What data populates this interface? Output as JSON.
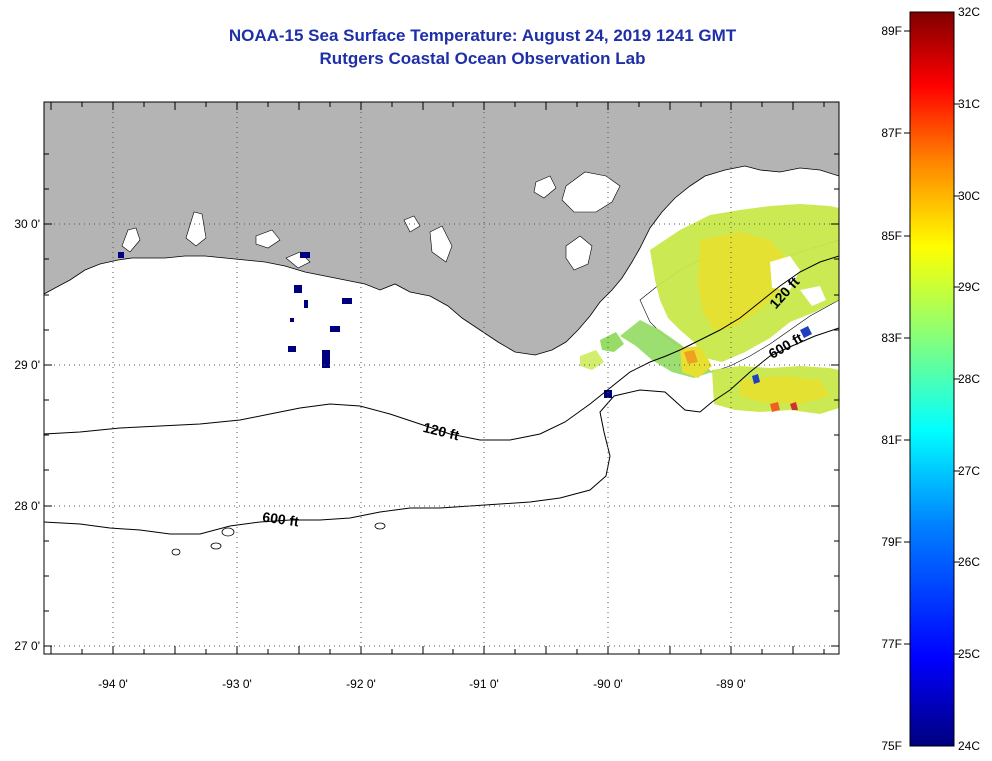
{
  "header": {
    "title": "NOAA-15 Sea Surface Temperature:  August 24, 2019 1241 GMT",
    "subtitle": "Rutgers Coastal Ocean Observation Lab"
  },
  "map": {
    "lon_ticks": [
      "-94 0'",
      "-93 0'",
      "-92 0'",
      "-91 0'",
      "-90 0'",
      "-89 0'"
    ],
    "lat_ticks": [
      "30 0'",
      "29 0'",
      "28 0'",
      "27 0'"
    ],
    "contours": [
      {
        "label": "120 ft"
      },
      {
        "label": "600 ft"
      },
      {
        "label": "120 ft"
      },
      {
        "label": "600 ft"
      }
    ],
    "colors": {
      "land": "#b4b4b4",
      "water": "#ffffff",
      "grid": "#000000",
      "cloud_mask": "#ffffff"
    }
  },
  "colorbar": {
    "fahrenheit_labels": [
      "89F",
      "87F",
      "85F",
      "83F",
      "81F",
      "79F",
      "77F",
      "75F"
    ],
    "celsius_labels": [
      "32C",
      "31C",
      "30C",
      "29C",
      "28C",
      "27C",
      "26C",
      "25C",
      "24C"
    ],
    "colors": [
      "#00007f",
      "#0000ff",
      "#0080ff",
      "#00ffff",
      "#80ff80",
      "#ffff00",
      "#ff8000",
      "#ff0000",
      "#7f0000"
    ]
  }
}
